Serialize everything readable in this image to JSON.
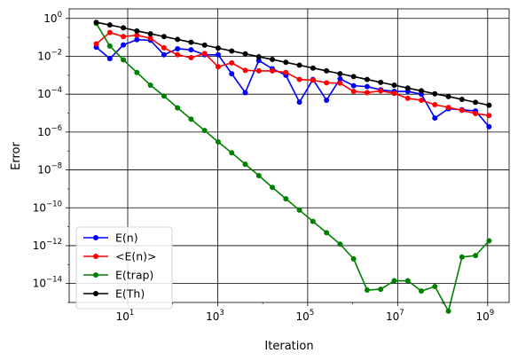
{
  "chart_data": {
    "type": "line",
    "title": "",
    "xlabel": "Iteration",
    "ylabel": "Error",
    "xscale": "log",
    "yscale": "log",
    "xlim": [
      0.5,
      3000000000
    ],
    "ylim": [
      1e-15,
      3.2
    ],
    "grid": true,
    "legend_placement": "lower-left",
    "x_ticks": [
      {
        "value": 10,
        "base": "10",
        "exp": "1"
      },
      {
        "value": 1000,
        "base": "10",
        "exp": "3"
      },
      {
        "value": 100000,
        "base": "10",
        "exp": "5"
      },
      {
        "value": 10000000,
        "base": "10",
        "exp": "7"
      },
      {
        "value": 1000000000,
        "base": "10",
        "exp": "9"
      }
    ],
    "y_ticks": [
      {
        "value": 1,
        "base": "10",
        "exp": "0"
      },
      {
        "value": 0.01,
        "base": "10",
        "exp": "−2"
      },
      {
        "value": 0.0001,
        "base": "10",
        "exp": "−4"
      },
      {
        "value": 1e-06,
        "base": "10",
        "exp": "−6"
      },
      {
        "value": 1e-08,
        "base": "10",
        "exp": "−8"
      },
      {
        "value": 1e-10,
        "base": "10",
        "exp": "−10"
      },
      {
        "value": 1e-12,
        "base": "10",
        "exp": "−12"
      },
      {
        "value": 1e-14,
        "base": "10",
        "exp": "−14"
      }
    ],
    "x": [
      2,
      4,
      8,
      16,
      32,
      64,
      128,
      256,
      512,
      1024,
      2048,
      4096,
      8192,
      16384,
      32768,
      65536,
      131072,
      262144,
      524288,
      1048576,
      2097152,
      4194304,
      8388608,
      16777216,
      33554432,
      67108864,
      134217728,
      268435456,
      536870912,
      1073741824
    ],
    "series": [
      {
        "name": "E(n)",
        "color": "#0000ff",
        "values": [
          0.03,
          0.0075,
          0.04,
          0.075,
          0.07,
          0.012,
          0.025,
          0.022,
          0.012,
          0.012,
          0.0012,
          0.00012,
          0.006,
          0.0022,
          0.001,
          3.8e-05,
          0.0006,
          4.8e-05,
          0.00065,
          0.00028,
          0.00025,
          0.00017,
          0.00014,
          0.00014,
          0.0001,
          5.5e-06,
          1.7e-05,
          1.5e-05,
          1.3e-05,
          1.9e-06
        ]
      },
      {
        "name": "<E(n)>",
        "color": "#ff0000",
        "values": [
          0.045,
          0.18,
          0.11,
          0.13,
          0.09,
          0.028,
          0.012,
          0.0085,
          0.014,
          0.0028,
          0.0045,
          0.0018,
          0.0017,
          0.0017,
          0.0014,
          0.0006,
          0.00055,
          0.0004,
          0.00038,
          0.00014,
          0.00012,
          0.00015,
          0.00011,
          6e-05,
          4.8e-05,
          2.8e-05,
          2e-05,
          1.4e-05,
          9.5e-06,
          7.5e-06
        ]
      },
      {
        "name": "E(trap)",
        "color": "#008000",
        "values": [
          0.55,
          0.035,
          0.0065,
          0.0014,
          0.0003,
          8e-05,
          1.9e-05,
          4.8e-06,
          1.2e-06,
          3e-07,
          8e-08,
          2e-08,
          5e-09,
          1.2e-09,
          3e-10,
          7.5e-11,
          1.9e-11,
          4.8e-12,
          1.2e-12,
          2e-13,
          4.5e-15,
          5e-15,
          1.4e-14,
          1.4e-14,
          4e-15,
          7e-15,
          3.5e-16,
          2.5e-13,
          3e-13,
          1.8e-12
        ]
      },
      {
        "name": "E(Th)",
        "color": "#000000",
        "values": [
          0.62,
          0.45,
          0.32,
          0.22,
          0.155,
          0.11,
          0.078,
          0.055,
          0.039,
          0.027,
          0.019,
          0.0135,
          0.0095,
          0.0068,
          0.0048,
          0.0034,
          0.0024,
          0.0017,
          0.0012,
          0.00085,
          0.0006,
          0.00042,
          0.0003,
          0.00021,
          0.00015,
          0.000105,
          7.5e-05,
          5.3e-05,
          3.7e-05,
          2.6e-05
        ]
      }
    ]
  }
}
